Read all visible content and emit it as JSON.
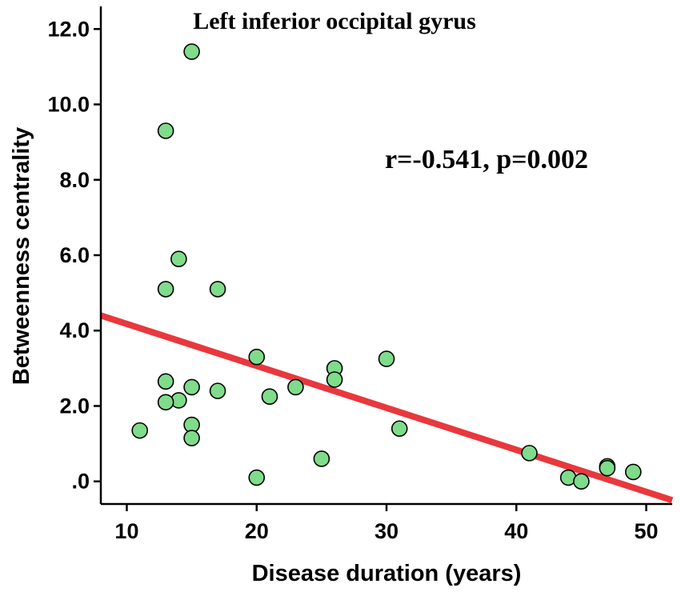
{
  "chart_data": {
    "type": "scatter",
    "title": "Left inferior occipital gyrus",
    "xlabel": "Disease duration (years)",
    "ylabel": "Betweenness centrality",
    "annotation": "r=-0.541, p=0.002",
    "xlim": [
      8,
      52
    ],
    "ylim": [
      -0.6,
      12.6
    ],
    "xticks": [
      10,
      20,
      30,
      40,
      50
    ],
    "xtick_labels": [
      "10",
      "20",
      "30",
      "40",
      "50"
    ],
    "yticks": [
      0,
      2,
      4,
      6,
      8,
      10,
      12
    ],
    "ytick_labels": [
      ".0",
      "2.0",
      "4.0",
      "6.0",
      "8.0",
      "10.0",
      "12.0"
    ],
    "points": [
      {
        "x": 15,
        "y": 11.4
      },
      {
        "x": 13,
        "y": 9.3
      },
      {
        "x": 14,
        "y": 5.9
      },
      {
        "x": 13,
        "y": 5.1
      },
      {
        "x": 17,
        "y": 5.1
      },
      {
        "x": 20,
        "y": 3.3
      },
      {
        "x": 30,
        "y": 3.25
      },
      {
        "x": 26,
        "y": 3.0
      },
      {
        "x": 26,
        "y": 2.7
      },
      {
        "x": 13,
        "y": 2.65
      },
      {
        "x": 15,
        "y": 2.5
      },
      {
        "x": 23,
        "y": 2.5
      },
      {
        "x": 17,
        "y": 2.4
      },
      {
        "x": 21,
        "y": 2.25
      },
      {
        "x": 14,
        "y": 2.15
      },
      {
        "x": 13,
        "y": 2.1
      },
      {
        "x": 15,
        "y": 1.5
      },
      {
        "x": 31,
        "y": 1.4
      },
      {
        "x": 11,
        "y": 1.35
      },
      {
        "x": 15,
        "y": 1.15
      },
      {
        "x": 41,
        "y": 0.75
      },
      {
        "x": 25,
        "y": 0.6
      },
      {
        "x": 47,
        "y": 0.4
      },
      {
        "x": 47,
        "y": 0.35
      },
      {
        "x": 49,
        "y": 0.25
      },
      {
        "x": 20,
        "y": 0.1
      },
      {
        "x": 44,
        "y": 0.1
      },
      {
        "x": 45,
        "y": 0.0
      }
    ],
    "fit_line": {
      "x": [
        8,
        52
      ],
      "y": [
        4.4,
        -0.5
      ]
    },
    "colors": {
      "point_fill": "#7fdc8a",
      "point_stroke": "#000000",
      "fit_line": "#e8383d",
      "axis": "#000000"
    }
  }
}
